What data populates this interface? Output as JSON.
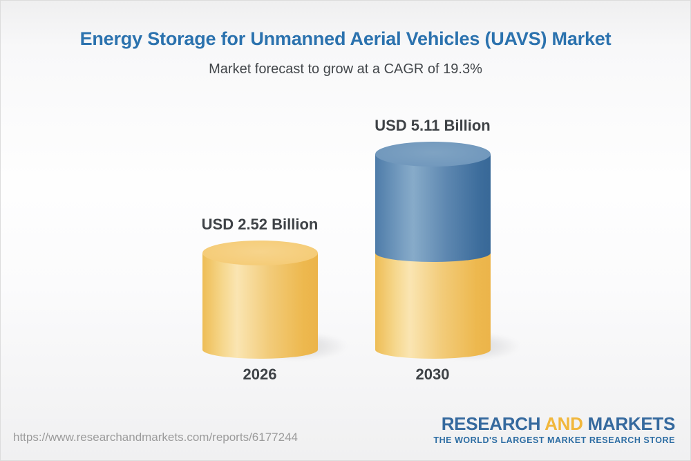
{
  "header": {
    "title": "Energy Storage for Unmanned Aerial Vehicles (UAVS) Market",
    "subtitle": "Market forecast to grow at a CAGR of 19.3%"
  },
  "chart_data": {
    "type": "bar",
    "subtype": "3d-cylinder-stacked",
    "title": "Energy Storage for Unmanned Aerial Vehicles (UAVS) Market",
    "subtitle": "Market forecast to grow at a CAGR of 19.3%",
    "unit": "USD Billion",
    "cagr_percent": 19.3,
    "categories": [
      "2026",
      "2030"
    ],
    "values": [
      2.52,
      5.11
    ],
    "legend": false,
    "grid": false,
    "axes_visible": false,
    "bars": [
      {
        "category": "2026",
        "label": "USD 2.52 Billion",
        "total": 2.52,
        "segments": [
          {
            "name": "base",
            "value": 2.52
          }
        ]
      },
      {
        "category": "2030",
        "label": "USD 5.11 Billion",
        "total": 5.11,
        "segments": [
          {
            "name": "base",
            "value": 2.52
          },
          {
            "name": "growth",
            "value": 2.59
          }
        ]
      }
    ],
    "colors": {
      "base": "#F2C263",
      "growth": "#4C7BA8",
      "label_text": "#3E4246",
      "title_text": "#2B72AE"
    }
  },
  "footer": {
    "url": "https://www.researchandmarkets.com/reports/6177244",
    "logo": {
      "research": "RESEARCH",
      "and": "AND",
      "markets": "MARKETS",
      "tagline": "THE WORLD'S LARGEST MARKET RESEARCH STORE"
    }
  }
}
